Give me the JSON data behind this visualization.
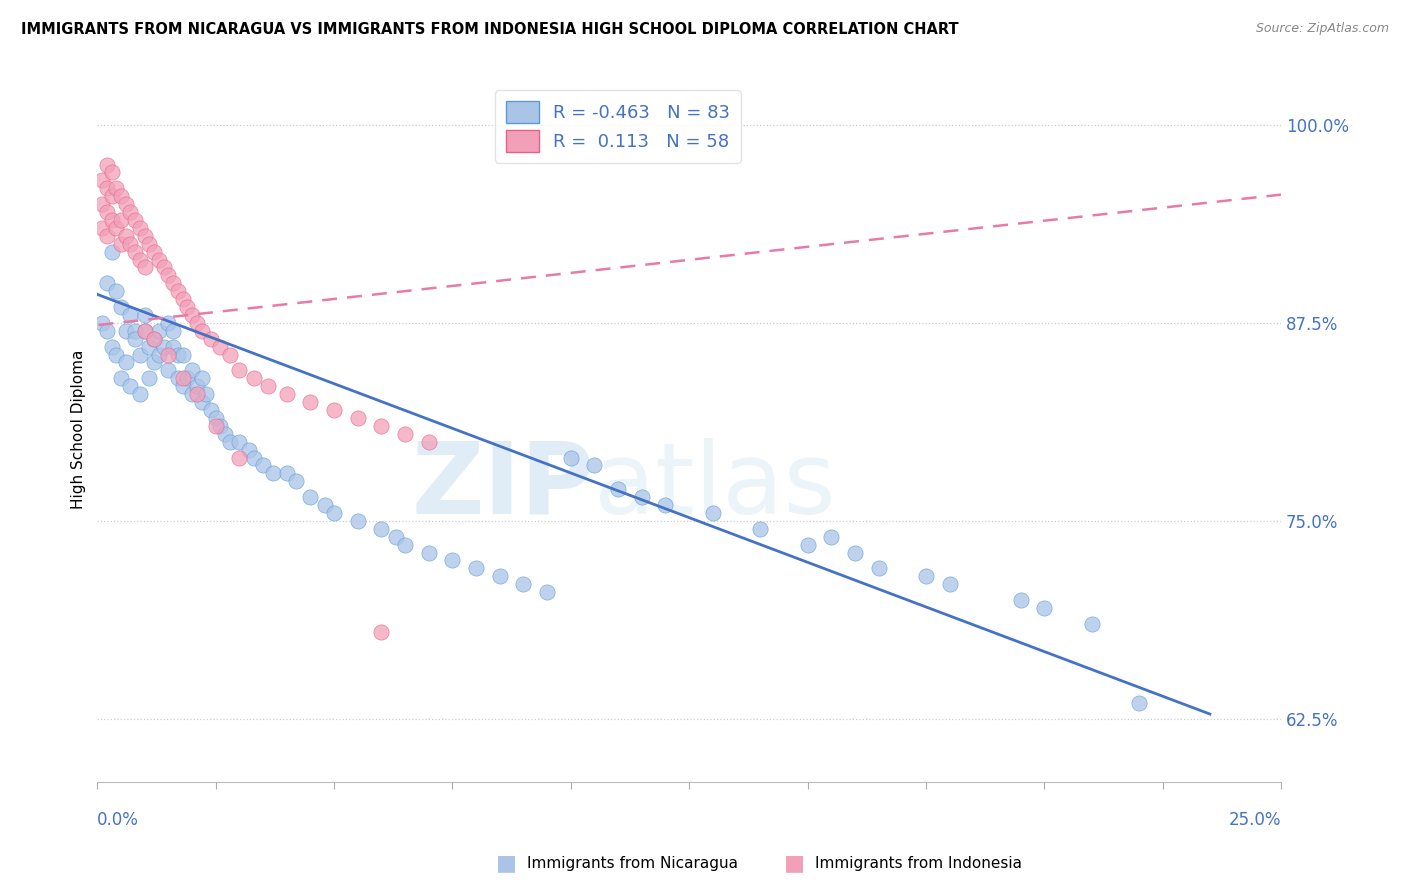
{
  "title": "IMMIGRANTS FROM NICARAGUA VS IMMIGRANTS FROM INDONESIA HIGH SCHOOL DIPLOMA CORRELATION CHART",
  "source": "Source: ZipAtlas.com",
  "ylabel": "High School Diploma",
  "ytick_labels": [
    "62.5%",
    "75.0%",
    "87.5%",
    "100.0%"
  ],
  "ytick_values": [
    0.625,
    0.75,
    0.875,
    1.0
  ],
  "xlim": [
    0.0,
    0.25
  ],
  "ylim": [
    0.585,
    1.03
  ],
  "legend_r1": "R = -0.463",
  "legend_n1": "N = 83",
  "legend_r2": "R =  0.113",
  "legend_n2": "N = 58",
  "watermark_zip": "ZIP",
  "watermark_atlas": "atlas",
  "nicaragua_color": "#aac4e8",
  "indonesia_color": "#f2a0b8",
  "nicaragua_edge_color": "#5b9bd5",
  "indonesia_edge_color": "#e8608a",
  "nicaragua_line_color": "#4472c4",
  "indonesia_line_color": "#e87aab",
  "nicaragua_scatter_x": [
    0.001,
    0.002,
    0.002,
    0.003,
    0.003,
    0.004,
    0.004,
    0.005,
    0.005,
    0.006,
    0.006,
    0.007,
    0.007,
    0.008,
    0.008,
    0.009,
    0.009,
    0.01,
    0.01,
    0.011,
    0.011,
    0.012,
    0.012,
    0.013,
    0.013,
    0.014,
    0.015,
    0.015,
    0.016,
    0.016,
    0.017,
    0.017,
    0.018,
    0.018,
    0.019,
    0.02,
    0.02,
    0.021,
    0.022,
    0.022,
    0.023,
    0.024,
    0.025,
    0.026,
    0.027,
    0.028,
    0.03,
    0.032,
    0.033,
    0.035,
    0.037,
    0.04,
    0.042,
    0.045,
    0.048,
    0.05,
    0.055,
    0.06,
    0.063,
    0.065,
    0.07,
    0.075,
    0.08,
    0.085,
    0.09,
    0.095,
    0.1,
    0.105,
    0.11,
    0.115,
    0.12,
    0.13,
    0.14,
    0.15,
    0.16,
    0.165,
    0.18,
    0.195,
    0.2,
    0.21,
    0.155,
    0.175,
    0.22
  ],
  "nicaragua_scatter_y": [
    0.875,
    0.87,
    0.9,
    0.86,
    0.92,
    0.855,
    0.895,
    0.84,
    0.885,
    0.87,
    0.85,
    0.88,
    0.835,
    0.87,
    0.865,
    0.855,
    0.83,
    0.88,
    0.87,
    0.86,
    0.84,
    0.865,
    0.85,
    0.87,
    0.855,
    0.86,
    0.875,
    0.845,
    0.86,
    0.87,
    0.855,
    0.84,
    0.855,
    0.835,
    0.84,
    0.845,
    0.83,
    0.835,
    0.84,
    0.825,
    0.83,
    0.82,
    0.815,
    0.81,
    0.805,
    0.8,
    0.8,
    0.795,
    0.79,
    0.785,
    0.78,
    0.78,
    0.775,
    0.765,
    0.76,
    0.755,
    0.75,
    0.745,
    0.74,
    0.735,
    0.73,
    0.725,
    0.72,
    0.715,
    0.71,
    0.705,
    0.79,
    0.785,
    0.77,
    0.765,
    0.76,
    0.755,
    0.745,
    0.735,
    0.73,
    0.72,
    0.71,
    0.7,
    0.695,
    0.685,
    0.74,
    0.715,
    0.635
  ],
  "indonesia_scatter_x": [
    0.001,
    0.001,
    0.001,
    0.002,
    0.002,
    0.002,
    0.002,
    0.003,
    0.003,
    0.003,
    0.004,
    0.004,
    0.005,
    0.005,
    0.005,
    0.006,
    0.006,
    0.007,
    0.007,
    0.008,
    0.008,
    0.009,
    0.009,
    0.01,
    0.01,
    0.011,
    0.012,
    0.013,
    0.014,
    0.015,
    0.016,
    0.017,
    0.018,
    0.019,
    0.02,
    0.021,
    0.022,
    0.024,
    0.026,
    0.028,
    0.03,
    0.033,
    0.036,
    0.04,
    0.045,
    0.05,
    0.055,
    0.06,
    0.065,
    0.07,
    0.01,
    0.012,
    0.015,
    0.018,
    0.021,
    0.025,
    0.03,
    0.06
  ],
  "indonesia_scatter_y": [
    0.965,
    0.95,
    0.935,
    0.975,
    0.96,
    0.945,
    0.93,
    0.97,
    0.955,
    0.94,
    0.96,
    0.935,
    0.955,
    0.94,
    0.925,
    0.95,
    0.93,
    0.945,
    0.925,
    0.94,
    0.92,
    0.935,
    0.915,
    0.93,
    0.91,
    0.925,
    0.92,
    0.915,
    0.91,
    0.905,
    0.9,
    0.895,
    0.89,
    0.885,
    0.88,
    0.875,
    0.87,
    0.865,
    0.86,
    0.855,
    0.845,
    0.84,
    0.835,
    0.83,
    0.825,
    0.82,
    0.815,
    0.81,
    0.805,
    0.8,
    0.87,
    0.865,
    0.855,
    0.84,
    0.83,
    0.81,
    0.79,
    0.68
  ],
  "nicaragua_trend_x": [
    0.0,
    0.235
  ],
  "nicaragua_trend_y": [
    0.893,
    0.628
  ],
  "indonesia_trend_x": [
    -0.005,
    0.25
  ],
  "indonesia_trend_y": [
    0.872,
    0.956
  ]
}
